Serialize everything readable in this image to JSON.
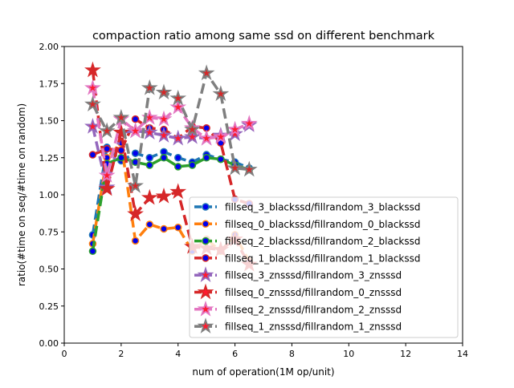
{
  "chart_data": {
    "type": "line",
    "title": "compaction ratio among same ssd on different benchmark",
    "xlabel": "num of operation(1M op/unit)",
    "ylabel": "ratio(#time on seq/#time on random)",
    "xlim": [
      0,
      14
    ],
    "ylim": [
      0.0,
      2.0
    ],
    "xticks": [
      0,
      2,
      4,
      6,
      8,
      10,
      12,
      14
    ],
    "xtick_labels": [
      "0",
      "2",
      "4",
      "6",
      "8",
      "10",
      "12",
      "14"
    ],
    "yticks": [
      0.0,
      0.25,
      0.5,
      0.75,
      1.0,
      1.25,
      1.5,
      1.75,
      2.0
    ],
    "ytick_labels": [
      "0.00",
      "0.25",
      "0.50",
      "0.75",
      "1.00",
      "1.25",
      "1.50",
      "1.75",
      "2.00"
    ],
    "grid": false,
    "legend_position": "lower-right",
    "x": [
      1.0,
      1.5,
      2.0,
      2.5,
      3.0,
      3.5,
      4.0,
      4.5,
      5.0,
      5.5,
      6.0,
      6.5
    ],
    "series": [
      {
        "name": "fillseq_3_blackssd/fillrandom_3_blackssd",
        "color": "#1f77b4",
        "marker": "circle",
        "x": [
          1.0,
          1.5,
          2.0,
          2.5,
          3.0,
          3.5,
          4.0,
          4.5,
          5.0,
          5.5,
          6.0,
          6.5
        ],
        "values": [
          0.73,
          1.32,
          1.23,
          1.28,
          1.25,
          1.29,
          1.25,
          1.22,
          1.27,
          1.24,
          1.22,
          1.18
        ]
      },
      {
        "name": "fillseq_0_blackssd/fillrandom_0_blackssd",
        "color": "#ff7f0e",
        "marker": "circle",
        "x": [
          1.0,
          1.5,
          2.0,
          2.5,
          3.0,
          3.5,
          4.0,
          4.5,
          5.0,
          5.5,
          6.0,
          6.5
        ],
        "values": [
          0.67,
          1.25,
          1.35,
          0.69,
          0.8,
          0.77,
          0.78,
          0.62,
          0.7,
          0.62,
          0.73,
          0.55
        ]
      },
      {
        "name": "fillseq_2_blackssd/fillrandom_2_blackssd",
        "color": "#2ca02c",
        "marker": "circle",
        "x": [
          1.0,
          1.5,
          2.0,
          2.5,
          3.0,
          3.5,
          4.0,
          4.5,
          5.0,
          5.5,
          6.0,
          6.5
        ],
        "values": [
          0.62,
          1.21,
          1.25,
          1.22,
          1.2,
          1.25,
          1.19,
          1.2,
          1.25,
          1.24,
          1.2,
          1.17
        ]
      },
      {
        "name": "fillseq_1_blackssd/fillrandom_1_blackssd",
        "color": "#d62728",
        "marker": "circle",
        "x": [
          1.0,
          1.5,
          2.0,
          2.5,
          3.0,
          3.5,
          4.0,
          4.5,
          5.0,
          5.5,
          6.0,
          6.5
        ],
        "values": [
          1.27,
          1.31,
          1.3,
          1.51,
          1.45,
          1.44,
          1.38,
          1.46,
          1.45,
          1.35,
          0.97,
          0.94
        ]
      },
      {
        "name": "fillseq_3_znsssd/fillrandom_3_znsssd",
        "color": "#9467bd",
        "marker": "star",
        "x": [
          1.0,
          1.5,
          2.0,
          2.5,
          3.0,
          3.5,
          4.0,
          4.5,
          5.0,
          5.5,
          6.0,
          6.5
        ],
        "values": [
          1.46,
          1.05,
          1.42,
          1.43,
          1.42,
          1.4,
          1.38,
          1.39,
          1.38,
          1.4,
          1.41,
          1.47
        ]
      },
      {
        "name": "fillseq_0_znsssd/fillrandom_0_znsssd",
        "color": "#d62728",
        "marker": "star",
        "x": [
          1.0,
          1.5,
          2.0,
          2.5,
          3.0,
          3.5,
          4.0,
          4.5,
          5.0,
          5.5,
          6.0,
          6.5
        ],
        "values": [
          1.84,
          1.04,
          1.42,
          0.87,
          0.98,
          0.99,
          1.02,
          0.65,
          0.64,
          0.63,
          0.7,
          0.53
        ]
      },
      {
        "name": "fillseq_2_znsssd/fillrandom_2_znsssd",
        "color": "#e377c2",
        "marker": "star",
        "x": [
          1.0,
          1.5,
          2.0,
          2.5,
          3.0,
          3.5,
          4.0,
          4.5,
          5.0,
          5.5,
          6.0,
          6.5
        ],
        "values": [
          1.72,
          1.13,
          1.51,
          1.43,
          1.52,
          1.51,
          1.59,
          1.45,
          1.38,
          1.39,
          1.44,
          1.48
        ]
      },
      {
        "name": "fillseq_1_znsssd/fillrandom_1_znsssd",
        "color": "#7f7f7f",
        "marker": "star",
        "x": [
          1.0,
          1.5,
          2.0,
          2.5,
          3.0,
          3.5,
          4.0,
          4.5,
          5.0,
          5.5,
          6.0,
          6.5
        ],
        "values": [
          1.61,
          1.43,
          1.52,
          1.06,
          1.72,
          1.69,
          1.65,
          1.44,
          1.82,
          1.68,
          1.18,
          1.17
        ]
      }
    ]
  }
}
